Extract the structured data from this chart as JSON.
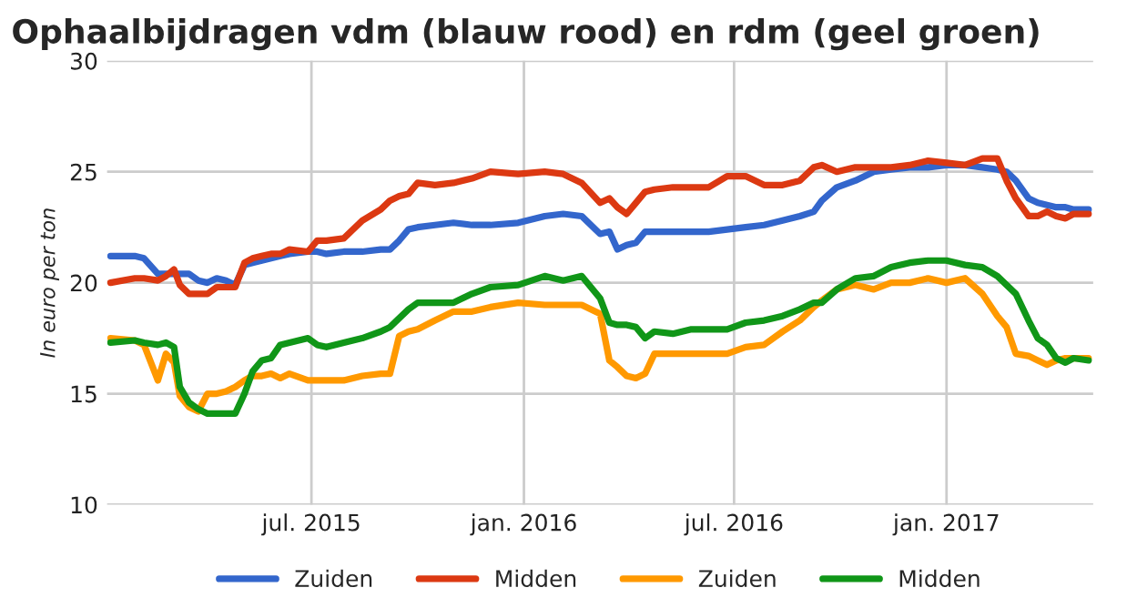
{
  "chart_data": {
    "type": "line",
    "title": "Ophaalbijdragen vdm (blauw rood) en rdm (geel groen)",
    "ylabel": "In euro per ton",
    "x": [
      "2015-01-08",
      "2015-01-29",
      "2015-02-06",
      "2015-02-18",
      "2015-02-25",
      "2015-03-04",
      "2015-03-09",
      "2015-03-17",
      "2015-03-25",
      "2015-04-02",
      "2015-04-10",
      "2015-04-18",
      "2015-04-26",
      "2015-05-04",
      "2015-05-11",
      "2015-05-19",
      "2015-05-27",
      "2015-06-04",
      "2015-06-12",
      "2015-06-28",
      "2015-07-06",
      "2015-07-14",
      "2015-07-29",
      "2015-08-14",
      "2015-08-30",
      "2015-09-07",
      "2015-09-15",
      "2015-09-23",
      "2015-10-01",
      "2015-10-16",
      "2015-11-01",
      "2015-11-17",
      "2015-12-03",
      "2015-12-27",
      "2016-01-19",
      "2016-02-04",
      "2016-02-20",
      "2016-03-07",
      "2016-03-15",
      "2016-03-22",
      "2016-03-30",
      "2016-04-07",
      "2016-04-15",
      "2016-04-23",
      "2016-05-09",
      "2016-05-25",
      "2016-06-09",
      "2016-06-25",
      "2016-07-11",
      "2016-07-27",
      "2016-08-12",
      "2016-08-27",
      "2016-09-08",
      "2016-09-15",
      "2016-09-28",
      "2016-10-14",
      "2016-10-30",
      "2016-11-14",
      "2016-11-30",
      "2016-12-16",
      "2017-01-01",
      "2017-01-17",
      "2017-02-01",
      "2017-02-14",
      "2017-02-22",
      "2017-03-02",
      "2017-03-13",
      "2017-03-21",
      "2017-03-29",
      "2017-04-06",
      "2017-04-14",
      "2017-04-21",
      "2017-05-04"
    ],
    "series": [
      {
        "name": "Zuiden",
        "color": "#3366cc",
        "values": [
          21.2,
          21.2,
          21.1,
          20.4,
          20.4,
          20.4,
          20.4,
          20.4,
          20.1,
          20.0,
          20.2,
          20.1,
          19.9,
          20.8,
          20.9,
          21.0,
          21.1,
          21.2,
          21.3,
          21.4,
          21.4,
          21.3,
          21.4,
          21.4,
          21.5,
          21.5,
          21.9,
          22.4,
          22.5,
          22.6,
          22.7,
          22.6,
          22.6,
          22.7,
          23.0,
          23.1,
          23.0,
          22.2,
          22.3,
          21.5,
          21.7,
          21.8,
          22.3,
          22.3,
          22.3,
          22.3,
          22.3,
          22.4,
          22.5,
          22.6,
          22.8,
          23.0,
          23.2,
          23.7,
          24.3,
          24.6,
          25.0,
          25.1,
          25.2,
          25.2,
          25.3,
          25.3,
          25.2,
          25.1,
          25.0,
          24.6,
          23.8,
          23.6,
          23.5,
          23.4,
          23.4,
          23.3,
          23.3
        ]
      },
      {
        "name": "Midden",
        "color": "#dc3912",
        "values": [
          20.0,
          20.2,
          20.2,
          20.1,
          20.3,
          20.6,
          19.9,
          19.5,
          19.5,
          19.5,
          19.8,
          19.8,
          19.8,
          20.9,
          21.1,
          21.2,
          21.3,
          21.3,
          21.5,
          21.4,
          21.9,
          21.9,
          22.0,
          22.8,
          23.3,
          23.7,
          23.9,
          24.0,
          24.5,
          24.4,
          24.5,
          24.7,
          25.0,
          24.9,
          25.0,
          24.9,
          24.5,
          23.6,
          23.8,
          23.4,
          23.1,
          23.6,
          24.1,
          24.2,
          24.3,
          24.3,
          24.3,
          24.8,
          24.8,
          24.4,
          24.4,
          24.6,
          25.2,
          25.3,
          25.0,
          25.2,
          25.2,
          25.2,
          25.3,
          25.5,
          25.4,
          25.3,
          25.6,
          25.6,
          24.6,
          23.8,
          23.0,
          23.0,
          23.2,
          23.0,
          22.9,
          23.1,
          23.1
        ]
      },
      {
        "name": "Zuiden",
        "color": "#ff9900",
        "values": [
          17.5,
          17.4,
          17.2,
          15.6,
          16.8,
          16.4,
          14.9,
          14.4,
          14.2,
          15.0,
          15.0,
          15.1,
          15.3,
          15.6,
          15.8,
          15.8,
          15.9,
          15.7,
          15.9,
          15.6,
          15.6,
          15.6,
          15.6,
          15.8,
          15.9,
          15.9,
          17.6,
          17.8,
          17.9,
          18.3,
          18.7,
          18.7,
          18.9,
          19.1,
          19.0,
          19.0,
          19.0,
          18.6,
          16.5,
          16.2,
          15.8,
          15.7,
          15.9,
          16.8,
          16.8,
          16.8,
          16.8,
          16.8,
          17.1,
          17.2,
          17.8,
          18.3,
          18.9,
          19.2,
          19.7,
          19.9,
          19.7,
          20.0,
          20.0,
          20.2,
          20.0,
          20.2,
          19.5,
          18.5,
          18.0,
          16.8,
          16.7,
          16.5,
          16.3,
          16.5,
          16.6,
          16.6,
          16.6
        ]
      },
      {
        "name": "Midden",
        "color": "#109618",
        "values": [
          17.3,
          17.4,
          17.3,
          17.2,
          17.3,
          17.1,
          15.3,
          14.6,
          14.3,
          14.1,
          14.1,
          14.1,
          14.1,
          15.0,
          16.0,
          16.5,
          16.6,
          17.2,
          17.3,
          17.5,
          17.2,
          17.1,
          17.3,
          17.5,
          17.8,
          18.0,
          18.4,
          18.8,
          19.1,
          19.1,
          19.1,
          19.5,
          19.8,
          19.9,
          20.3,
          20.1,
          20.3,
          19.3,
          18.2,
          18.1,
          18.1,
          18.0,
          17.5,
          17.8,
          17.7,
          17.9,
          17.9,
          17.9,
          18.2,
          18.3,
          18.5,
          18.8,
          19.1,
          19.1,
          19.7,
          20.2,
          20.3,
          20.7,
          20.9,
          21.0,
          21.0,
          20.8,
          20.7,
          20.3,
          19.9,
          19.5,
          18.3,
          17.5,
          17.2,
          16.6,
          16.4,
          16.6,
          16.5
        ]
      }
    ],
    "xlim": [
      "2015-01-05",
      "2017-05-08"
    ],
    "xticks": [
      {
        "value": "2015-07-01",
        "label": "jul. 2015"
      },
      {
        "value": "2016-01-01",
        "label": "jan. 2016"
      },
      {
        "value": "2016-07-01",
        "label": "jul. 2016"
      },
      {
        "value": "2017-01-01",
        "label": "jan. 2017"
      }
    ],
    "ylim": [
      10,
      30
    ],
    "yticks": [
      10,
      15,
      20,
      25,
      30
    ],
    "grid": true,
    "legend": "bottom",
    "marker": "none",
    "line_style": "solid"
  }
}
